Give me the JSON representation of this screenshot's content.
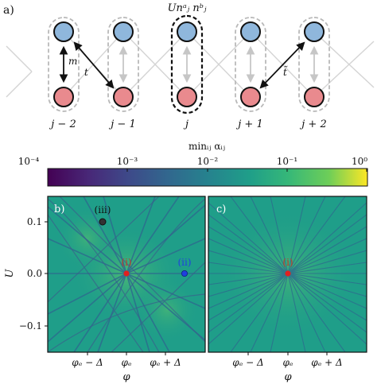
{
  "panel_a": {
    "label": "a)",
    "top_label": "Unᵃⱼ nᵇⱼ",
    "m_label": "m",
    "t_label": "t",
    "t_tilde_label": "t̃",
    "sites": [
      "j − 2",
      "j − 1",
      "j",
      "j + 1",
      "j + 2"
    ],
    "colors": {
      "upper": "#8fb7dc",
      "lower": "#e98a8e"
    }
  },
  "colorbar": {
    "title": "minᵢⱼ αᵢⱼ",
    "ticks": [
      "10⁻⁴",
      "10⁻³",
      "10⁻²",
      "10⁻¹",
      "10⁰"
    ]
  },
  "panel_b": {
    "label": "b)",
    "point_labels": {
      "iii": "(iii)",
      "i": "(i)",
      "ii": "(ii)"
    },
    "point_colors": {
      "iii": "#333333",
      "i": "#e02020",
      "ii": "#2040e0"
    }
  },
  "panel_c": {
    "label": "c)",
    "point_labels": {
      "i": "(i)"
    }
  },
  "axes": {
    "ylabel": "U",
    "xlabel": "φ",
    "yticks": [
      "0.1",
      "0.0",
      "−0.1"
    ],
    "xticks": [
      "φₑ − Δ",
      "φₑ",
      "φₑ + Δ"
    ]
  }
}
